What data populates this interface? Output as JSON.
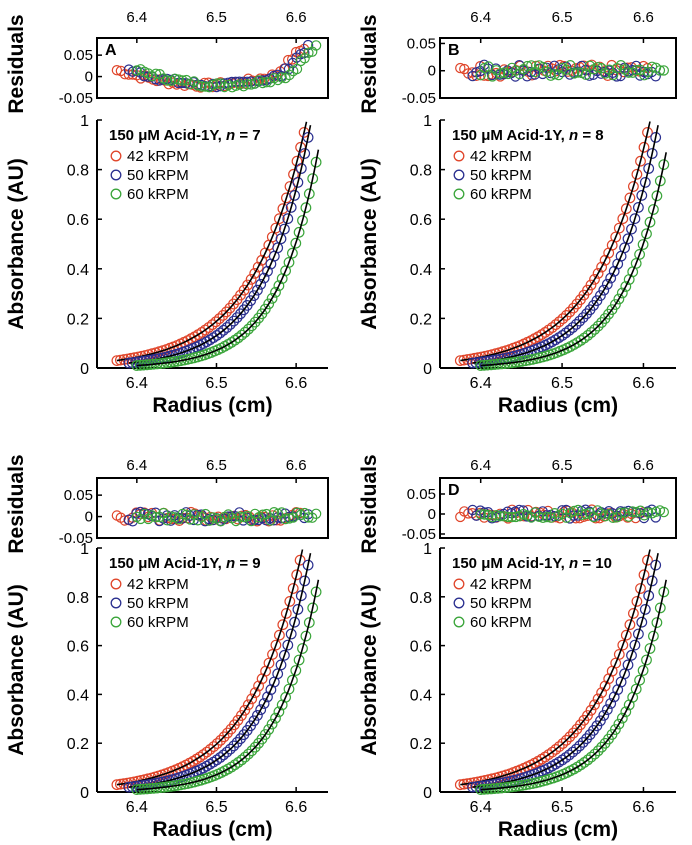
{
  "figure": {
    "axis_labels": {
      "residuals": "Residuals",
      "absorbance": "Absorbance (AU)",
      "radius": "Radius (cm)"
    },
    "speeds": [
      {
        "label": "42 kRPM",
        "color": "#e0452a"
      },
      {
        "label": "50 kRPM",
        "color": "#2a2f8f"
      },
      {
        "label": "60 kRPM",
        "color": "#3aa53a"
      }
    ],
    "fit_color": "#000000"
  },
  "chart_data": [
    {
      "type": "scatter",
      "panel_letter": "A",
      "title": "150 µM Acid-1Y, n = 7",
      "title_main": "150 μM Acid-1Y, ",
      "title_n": "n",
      "title_value": " = 7",
      "x_range": [
        6.35,
        6.64
      ],
      "x_ticks": [
        "6.4",
        "6.5",
        "6.6"
      ],
      "residuals": {
        "ylim": [
          -0.05,
          0.09
        ],
        "ticks": [
          "0.05",
          "0",
          "-0.05"
        ],
        "pattern": "bow"
      },
      "absorbance": {
        "ylim": [
          0,
          1
        ],
        "ticks": [
          "1",
          "0.8",
          "0.6",
          "0.4",
          "0.2",
          "0"
        ]
      },
      "series": [
        {
          "name": "42 kRPM",
          "x_start": 6.375,
          "x_end": 6.61,
          "y_start": 0.03,
          "y_end": 0.95
        },
        {
          "name": "50 kRPM",
          "x_start": 6.39,
          "x_end": 6.615,
          "y_start": 0.02,
          "y_end": 0.93
        },
        {
          "name": "60 kRPM",
          "x_start": 6.4,
          "x_end": 6.625,
          "y_start": 0.01,
          "y_end": 0.83
        }
      ]
    },
    {
      "type": "scatter",
      "panel_letter": "B",
      "title": "150 µM Acid-1Y, n = 8",
      "title_main": "150 μM Acid-1Y, ",
      "title_n": "n",
      "title_value": " = 8",
      "x_range": [
        6.35,
        6.64
      ],
      "x_ticks": [
        "6.4",
        "6.5",
        "6.6"
      ],
      "residuals": {
        "ylim": [
          -0.05,
          0.06
        ],
        "ticks": [
          "0.05",
          "0",
          "-0.05"
        ],
        "pattern": "flat"
      },
      "absorbance": {
        "ylim": [
          0,
          1
        ],
        "ticks": [
          "1",
          "0.8",
          "0.6",
          "0.4",
          "0.2",
          "0"
        ]
      },
      "series": [
        {
          "name": "42 kRPM",
          "x_start": 6.375,
          "x_end": 6.605,
          "y_start": 0.03,
          "y_end": 0.95
        },
        {
          "name": "50 kRPM",
          "x_start": 6.39,
          "x_end": 6.615,
          "y_start": 0.02,
          "y_end": 0.93
        },
        {
          "name": "60 kRPM",
          "x_start": 6.4,
          "x_end": 6.625,
          "y_start": 0.01,
          "y_end": 0.82
        }
      ]
    },
    {
      "type": "scatter",
      "panel_letter": "",
      "title": "150 µM Acid-1Y, n = 9",
      "title_main": "150 μM Acid-1Y, ",
      "title_n": "n",
      "title_value": " = 9",
      "x_range": [
        6.35,
        6.64
      ],
      "x_ticks": [
        "6.4",
        "6.5",
        "6.6"
      ],
      "residuals": {
        "ylim": [
          -0.05,
          0.09
        ],
        "ticks": [
          "0.05",
          "0",
          "-0.05"
        ],
        "pattern": "flat"
      },
      "absorbance": {
        "ylim": [
          0,
          1
        ],
        "ticks": [
          "1",
          "0.8",
          "0.6",
          "0.4",
          "0.2",
          "0"
        ]
      },
      "series": [
        {
          "name": "42 kRPM",
          "x_start": 6.375,
          "x_end": 6.605,
          "y_start": 0.03,
          "y_end": 0.95
        },
        {
          "name": "50 kRPM",
          "x_start": 6.39,
          "x_end": 6.615,
          "y_start": 0.02,
          "y_end": 0.93
        },
        {
          "name": "60 kRPM",
          "x_start": 6.4,
          "x_end": 6.625,
          "y_start": 0.01,
          "y_end": 0.82
        }
      ]
    },
    {
      "type": "scatter",
      "panel_letter": "D",
      "title": "150 µM Acid-1Y, n = 10",
      "title_main": "150 μM Acid-1Y, ",
      "title_n": "n",
      "title_value": " = 10",
      "x_range": [
        6.35,
        6.64
      ],
      "x_ticks": [
        "6.4",
        "6.5",
        "6.6"
      ],
      "residuals": {
        "ylim": [
          -0.06,
          0.09
        ],
        "ticks": [
          "0.05",
          "0",
          "-0.05"
        ],
        "pattern": "flat"
      },
      "absorbance": {
        "ylim": [
          0,
          1
        ],
        "ticks": [
          "1",
          "0.8",
          "0.6",
          "0.4",
          "0.2",
          "0"
        ]
      },
      "series": [
        {
          "name": "42 kRPM",
          "x_start": 6.375,
          "x_end": 6.605,
          "y_start": 0.03,
          "y_end": 0.95
        },
        {
          "name": "50 kRPM",
          "x_start": 6.39,
          "x_end": 6.615,
          "y_start": 0.02,
          "y_end": 0.93
        },
        {
          "name": "60 kRPM",
          "x_start": 6.4,
          "x_end": 6.625,
          "y_start": 0.01,
          "y_end": 0.82
        }
      ]
    }
  ]
}
